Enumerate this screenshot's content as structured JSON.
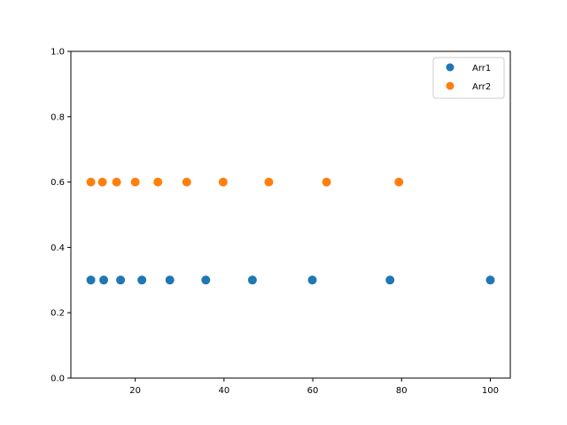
{
  "chart_data": {
    "type": "scatter",
    "title": "",
    "xlabel": "",
    "ylabel": "",
    "xlim": [
      5.5,
      104.5
    ],
    "ylim": [
      0.0,
      1.0
    ],
    "xticks": [
      20,
      40,
      60,
      80,
      100
    ],
    "yticks": [
      0.0,
      0.2,
      0.4,
      0.6,
      0.8,
      1.0
    ],
    "grid": false,
    "legend_position": "top-right",
    "series": [
      {
        "name": "Arr1",
        "color": "#1f77b4",
        "x": [
          10,
          12.9,
          16.7,
          21.5,
          27.8,
          35.9,
          46.4,
          59.9,
          77.4,
          100
        ],
        "y": [
          0.3,
          0.3,
          0.3,
          0.3,
          0.3,
          0.3,
          0.3,
          0.3,
          0.3,
          0.3
        ]
      },
      {
        "name": "Arr2",
        "color": "#ff7f0e",
        "x": [
          10,
          12.6,
          15.8,
          20,
          25.1,
          31.6,
          39.8,
          50.1,
          63.1,
          79.4
        ],
        "y": [
          0.6,
          0.6,
          0.6,
          0.6,
          0.6,
          0.6,
          0.6,
          0.6,
          0.6,
          0.6
        ]
      }
    ]
  }
}
